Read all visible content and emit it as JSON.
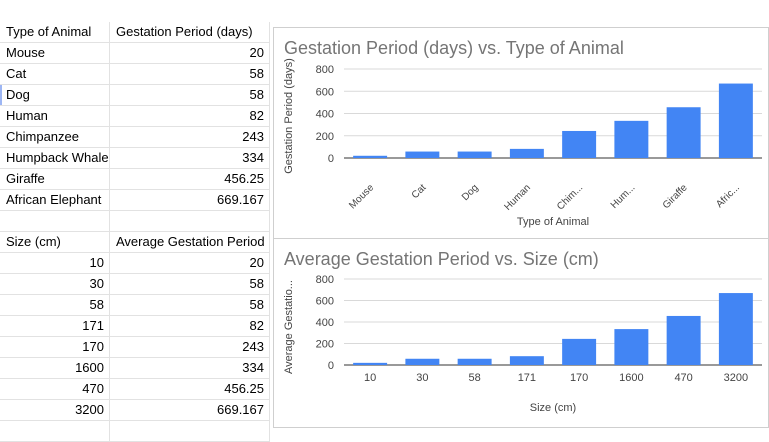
{
  "table1": {
    "headers": [
      "Type of Animal",
      "Gestation Period (days)"
    ],
    "rows": [
      [
        "Mouse",
        "20"
      ],
      [
        "Cat",
        "58"
      ],
      [
        "Dog",
        "58"
      ],
      [
        "Human",
        "82"
      ],
      [
        "Chimpanzee",
        "243"
      ],
      [
        "Humpback Whale",
        "334"
      ],
      [
        "Giraffe",
        "456.25"
      ],
      [
        "African Elephant",
        "669.167"
      ]
    ]
  },
  "table2": {
    "headers": [
      "Size (cm)",
      "Average Gestation Period"
    ],
    "rows": [
      [
        "10",
        "20"
      ],
      [
        "30",
        "58"
      ],
      [
        "58",
        "58"
      ],
      [
        "171",
        "82"
      ],
      [
        "170",
        "243"
      ],
      [
        "1600",
        "334"
      ],
      [
        "470",
        "456.25"
      ],
      [
        "3200",
        "669.167"
      ]
    ]
  },
  "chart_data": [
    {
      "type": "bar",
      "title": "Gestation Period (days) vs. Type of Animal",
      "xlabel": "Type of Animal",
      "ylabel": "Gestation Period (days)",
      "categories": [
        "Mouse",
        "Cat",
        "Dog",
        "Human",
        "Chim...",
        "Hum...",
        "Giraffe",
        "Afric..."
      ],
      "series": [
        {
          "values": [
            20,
            58,
            58,
            82,
            243,
            334,
            456.25,
            669.167
          ]
        }
      ],
      "ylim": [
        0,
        800
      ],
      "yticks": [
        "0",
        "200",
        "400",
        "600",
        "800"
      ],
      "grid": true,
      "color": "#4285f4"
    },
    {
      "type": "bar",
      "title": "Average Gestation Period vs. Size (cm)",
      "xlabel": "Size (cm)",
      "ylabel": "Average Gestatio...",
      "categories": [
        "10",
        "30",
        "58",
        "171",
        "170",
        "1600",
        "470",
        "3200"
      ],
      "series": [
        {
          "values": [
            20,
            58,
            58,
            82,
            243,
            334,
            456.25,
            669.167
          ]
        }
      ],
      "ylim": [
        0,
        800
      ],
      "yticks": [
        "0",
        "200",
        "400",
        "600",
        "800"
      ],
      "grid": true,
      "color": "#4285f4"
    }
  ]
}
